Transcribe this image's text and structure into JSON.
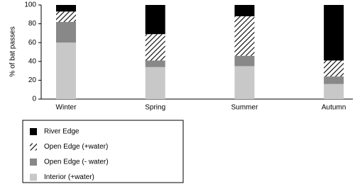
{
  "chart_data": {
    "type": "stacked_bar",
    "y_label": "% of bat passes",
    "categories": [
      "Winter",
      "Spring",
      "Summer",
      "Autumn"
    ],
    "series": [
      {
        "name": "River Edge",
        "color": "#000000",
        "values": [
          7,
          31,
          12,
          59
        ]
      },
      {
        "name": "Open Edge (+water)",
        "color": "#000000",
        "hatch": true,
        "values": [
          11,
          28,
          42,
          17
        ]
      },
      {
        "name": "Open Edge (- water)",
        "color": "#888888",
        "values": [
          22,
          7,
          11,
          8
        ]
      },
      {
        "name": "Interior (+water)",
        "color": "#c8c8c8",
        "values": [
          60,
          34,
          35,
          16
        ]
      }
    ],
    "ylim": [
      0,
      100
    ],
    "yticks": [
      0,
      20,
      40,
      60,
      80,
      100
    ],
    "grid": false,
    "legend": "bottom-left"
  }
}
